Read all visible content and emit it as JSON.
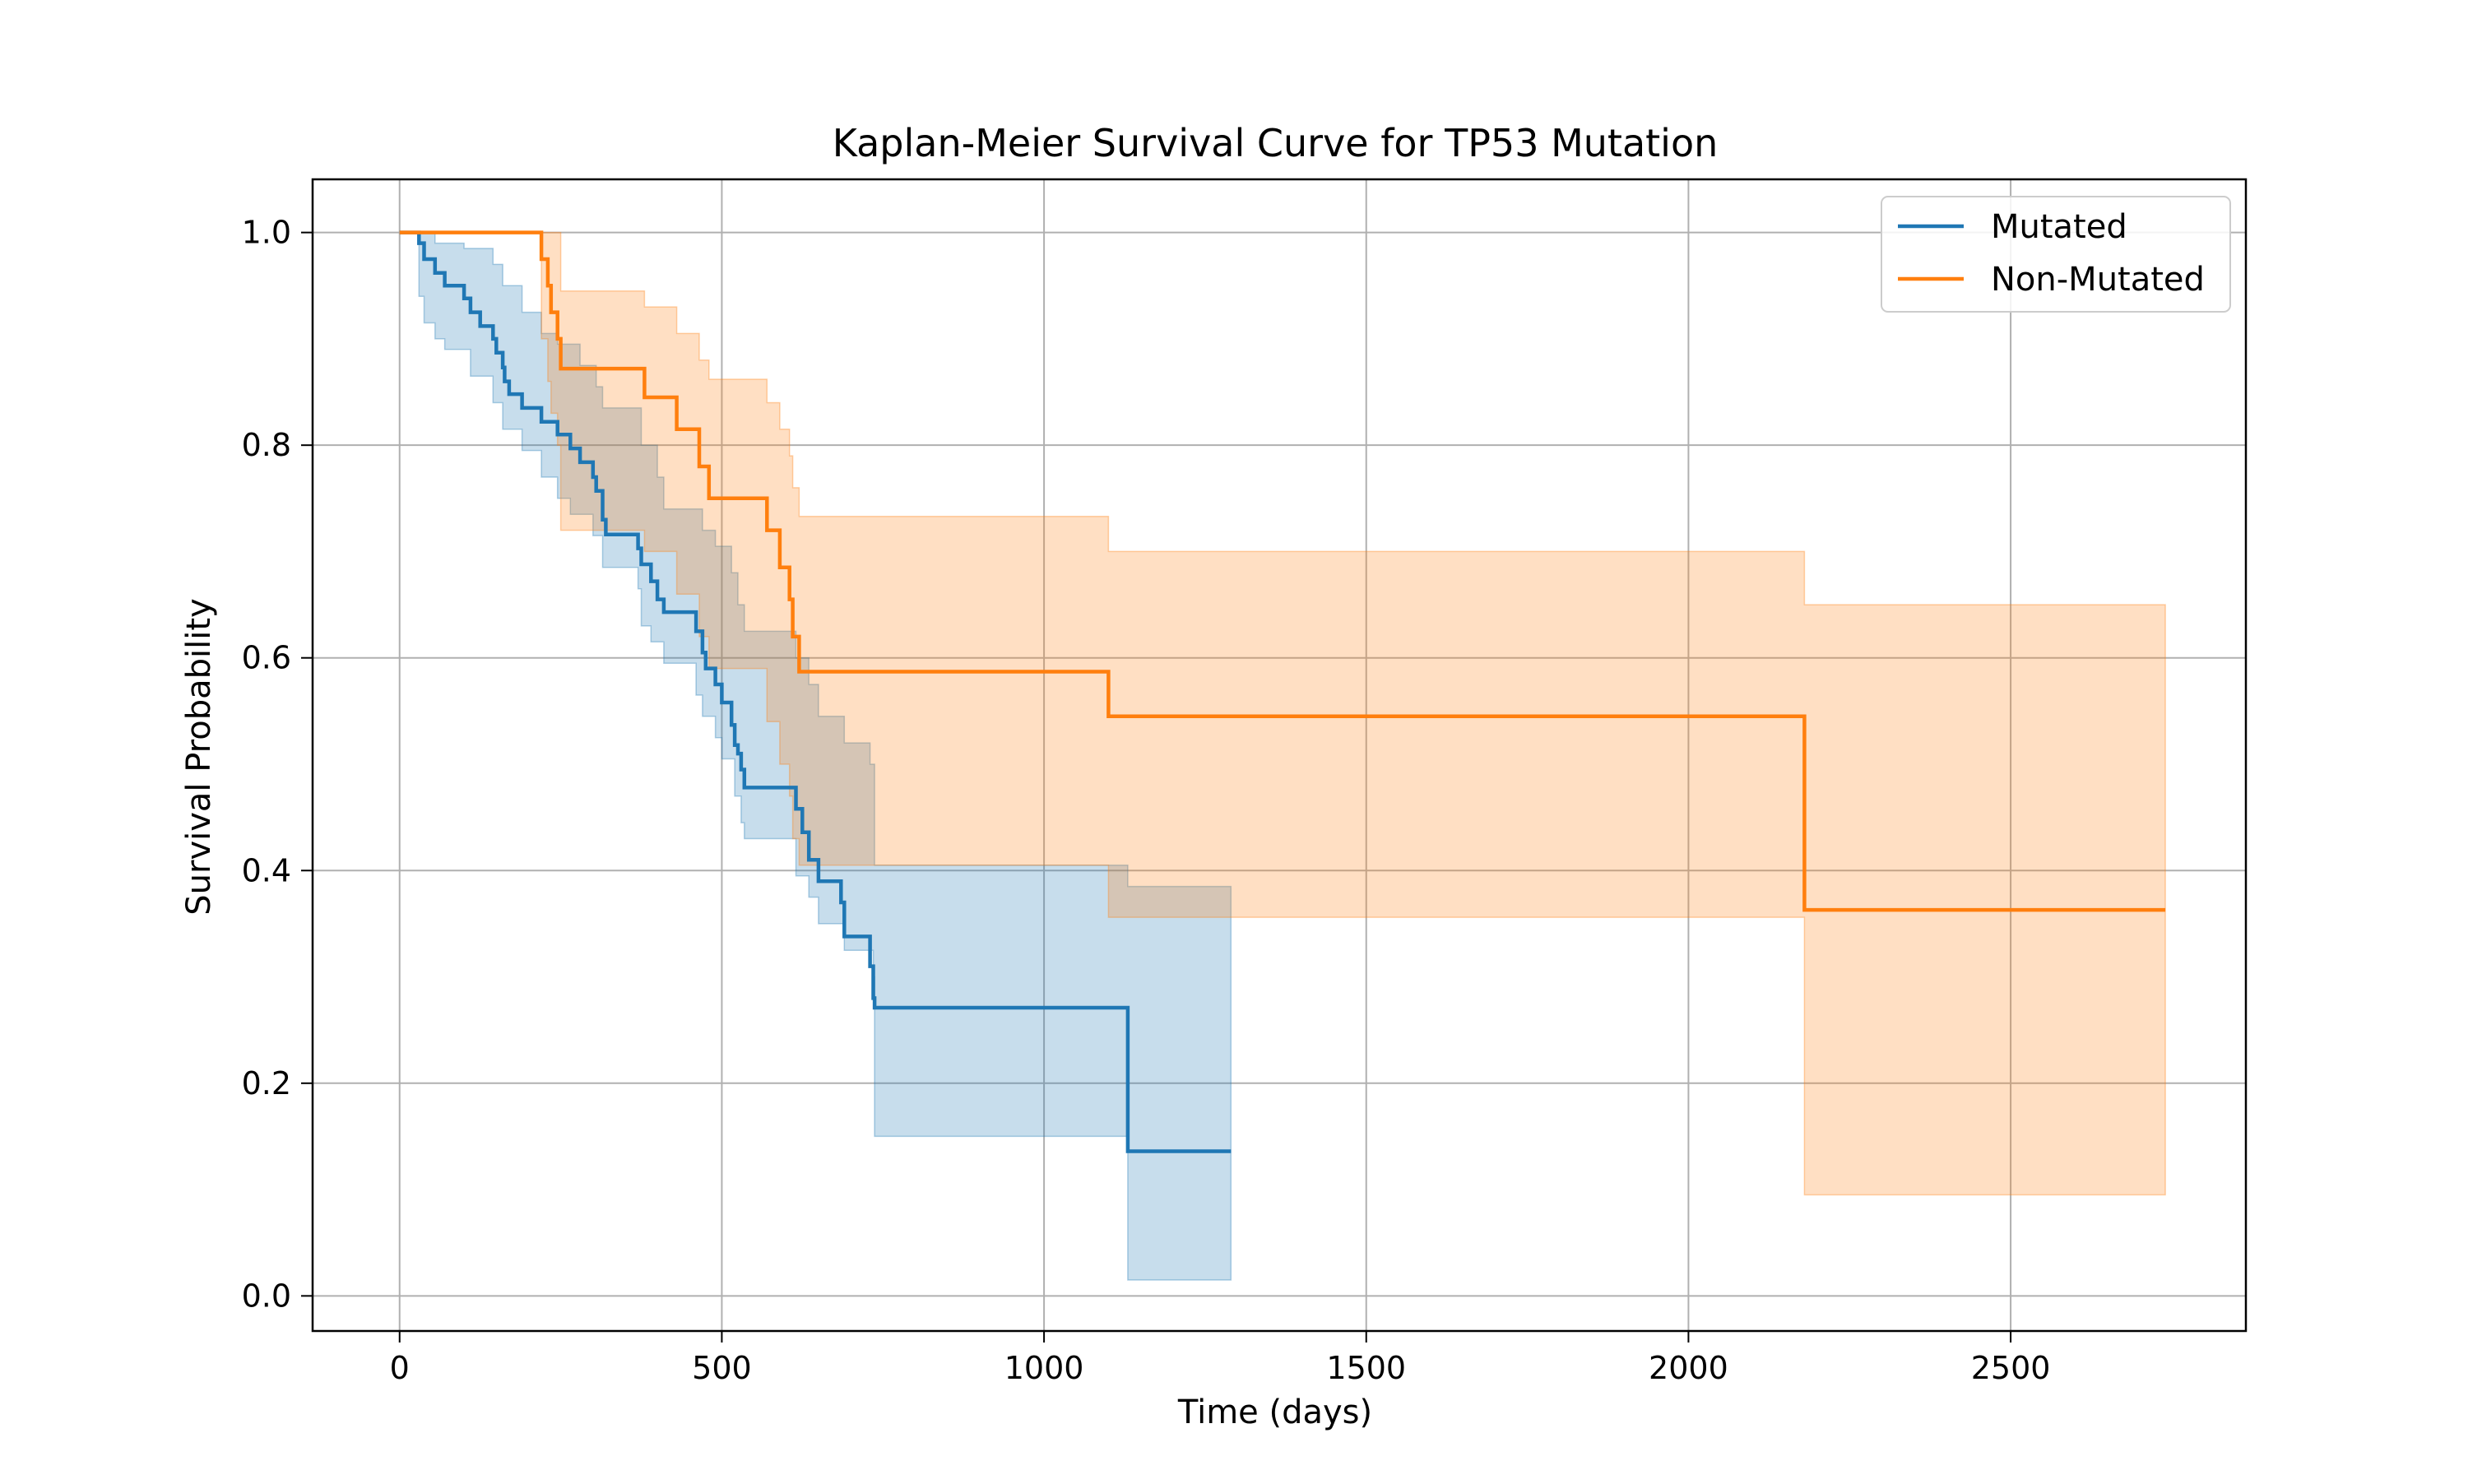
{
  "chart_data": {
    "type": "line",
    "title": "Kaplan-Meier Survival Curve for TP53 Mutation",
    "xlabel": "Time (days)",
    "ylabel": "Survival Probability",
    "xlim": [
      -135,
      2865
    ],
    "ylim": [
      -0.033,
      1.05
    ],
    "xticks": [
      0,
      500,
      1000,
      1500,
      2000,
      2500
    ],
    "xtick_labels": [
      "0",
      "500",
      "1000",
      "1500",
      "2000",
      "2500"
    ],
    "yticks": [
      0.0,
      0.2,
      0.4,
      0.6,
      0.8,
      1.0
    ],
    "ytick_labels": [
      "0.0",
      "0.2",
      "0.4",
      "0.6",
      "0.8",
      "1.0"
    ],
    "grid": true,
    "legend_position": "top-right",
    "series": [
      {
        "name": "Mutated",
        "color": "#1f77b4",
        "step_points": [
          [
            0,
            1.0
          ],
          [
            30,
            0.99
          ],
          [
            38,
            0.975
          ],
          [
            55,
            0.962
          ],
          [
            70,
            0.95
          ],
          [
            100,
            0.938
          ],
          [
            110,
            0.925
          ],
          [
            125,
            0.912
          ],
          [
            145,
            0.9
          ],
          [
            150,
            0.887
          ],
          [
            160,
            0.873
          ],
          [
            163,
            0.86
          ],
          [
            170,
            0.848
          ],
          [
            190,
            0.835
          ],
          [
            220,
            0.822
          ],
          [
            245,
            0.81
          ],
          [
            265,
            0.797
          ],
          [
            280,
            0.784
          ],
          [
            300,
            0.77
          ],
          [
            305,
            0.757
          ],
          [
            315,
            0.73
          ],
          [
            320,
            0.716
          ],
          [
            370,
            0.703
          ],
          [
            375,
            0.688
          ],
          [
            390,
            0.672
          ],
          [
            400,
            0.655
          ],
          [
            410,
            0.643
          ],
          [
            460,
            0.625
          ],
          [
            470,
            0.605
          ],
          [
            475,
            0.59
          ],
          [
            490,
            0.575
          ],
          [
            500,
            0.558
          ],
          [
            515,
            0.537
          ],
          [
            520,
            0.518
          ],
          [
            525,
            0.51
          ],
          [
            530,
            0.495
          ],
          [
            535,
            0.478
          ],
          [
            615,
            0.458
          ],
          [
            625,
            0.436
          ],
          [
            635,
            0.41
          ],
          [
            650,
            0.39
          ],
          [
            685,
            0.37
          ],
          [
            690,
            0.338
          ],
          [
            730,
            0.31
          ],
          [
            735,
            0.28
          ],
          [
            737,
            0.271
          ],
          [
            1130,
            0.136
          ],
          [
            1290,
            0.136
          ]
        ],
        "ci_lower": [
          [
            0,
            1.0
          ],
          [
            30,
            0.94
          ],
          [
            38,
            0.915
          ],
          [
            55,
            0.9
          ],
          [
            70,
            0.89
          ],
          [
            110,
            0.865
          ],
          [
            145,
            0.84
          ],
          [
            160,
            0.815
          ],
          [
            190,
            0.795
          ],
          [
            220,
            0.77
          ],
          [
            245,
            0.75
          ],
          [
            265,
            0.735
          ],
          [
            300,
            0.715
          ],
          [
            315,
            0.685
          ],
          [
            370,
            0.665
          ],
          [
            375,
            0.63
          ],
          [
            390,
            0.615
          ],
          [
            410,
            0.595
          ],
          [
            460,
            0.565
          ],
          [
            470,
            0.545
          ],
          [
            490,
            0.525
          ],
          [
            500,
            0.505
          ],
          [
            520,
            0.47
          ],
          [
            530,
            0.445
          ],
          [
            535,
            0.43
          ],
          [
            615,
            0.395
          ],
          [
            635,
            0.375
          ],
          [
            650,
            0.35
          ],
          [
            690,
            0.325
          ],
          [
            735,
            0.3
          ],
          [
            737,
            0.15
          ],
          [
            1130,
            0.015
          ],
          [
            1290,
            0.015
          ]
        ],
        "ci_upper": [
          [
            0,
            1.0
          ],
          [
            30,
            1.0
          ],
          [
            55,
            0.99
          ],
          [
            100,
            0.985
          ],
          [
            145,
            0.97
          ],
          [
            160,
            0.95
          ],
          [
            190,
            0.925
          ],
          [
            220,
            0.905
          ],
          [
            245,
            0.895
          ],
          [
            280,
            0.875
          ],
          [
            305,
            0.855
          ],
          [
            315,
            0.835
          ],
          [
            375,
            0.8
          ],
          [
            400,
            0.77
          ],
          [
            410,
            0.74
          ],
          [
            470,
            0.72
          ],
          [
            490,
            0.705
          ],
          [
            515,
            0.68
          ],
          [
            525,
            0.65
          ],
          [
            535,
            0.625
          ],
          [
            615,
            0.6
          ],
          [
            635,
            0.575
          ],
          [
            650,
            0.545
          ],
          [
            690,
            0.52
          ],
          [
            730,
            0.5
          ],
          [
            737,
            0.405
          ],
          [
            1130,
            0.385
          ],
          [
            1290,
            0.385
          ]
        ]
      },
      {
        "name": "Non-Mutated",
        "color": "#ff7f0e",
        "step_points": [
          [
            0,
            1.0
          ],
          [
            220,
            0.975
          ],
          [
            230,
            0.95
          ],
          [
            235,
            0.925
          ],
          [
            245,
            0.9
          ],
          [
            250,
            0.872
          ],
          [
            380,
            0.845
          ],
          [
            430,
            0.815
          ],
          [
            465,
            0.78
          ],
          [
            480,
            0.75
          ],
          [
            570,
            0.72
          ],
          [
            590,
            0.685
          ],
          [
            605,
            0.655
          ],
          [
            610,
            0.62
          ],
          [
            620,
            0.587
          ],
          [
            1100,
            0.545
          ],
          [
            2180,
            0.363
          ],
          [
            2740,
            0.363
          ]
        ],
        "ci_lower": [
          [
            0,
            1.0
          ],
          [
            220,
            0.9
          ],
          [
            230,
            0.86
          ],
          [
            235,
            0.83
          ],
          [
            245,
            0.8
          ],
          [
            250,
            0.72
          ],
          [
            380,
            0.7
          ],
          [
            430,
            0.66
          ],
          [
            465,
            0.62
          ],
          [
            480,
            0.59
          ],
          [
            570,
            0.54
          ],
          [
            590,
            0.5
          ],
          [
            605,
            0.47
          ],
          [
            610,
            0.43
          ],
          [
            620,
            0.405
          ],
          [
            1100,
            0.356
          ],
          [
            2180,
            0.095
          ],
          [
            2740,
            0.095
          ]
        ],
        "ci_upper": [
          [
            0,
            1.0
          ],
          [
            250,
            0.945
          ],
          [
            380,
            0.93
          ],
          [
            430,
            0.905
          ],
          [
            465,
            0.88
          ],
          [
            480,
            0.862
          ],
          [
            570,
            0.84
          ],
          [
            590,
            0.815
          ],
          [
            605,
            0.79
          ],
          [
            610,
            0.76
          ],
          [
            620,
            0.733
          ],
          [
            1100,
            0.7
          ],
          [
            2180,
            0.65
          ],
          [
            2740,
            0.65
          ]
        ]
      }
    ]
  }
}
